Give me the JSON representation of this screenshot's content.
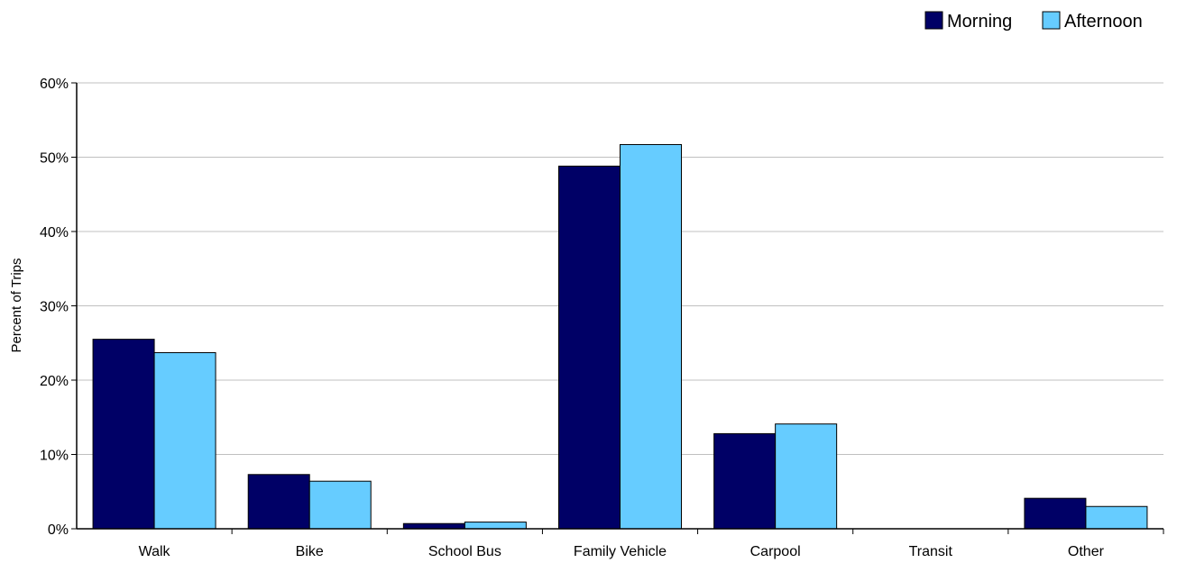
{
  "chart_data": {
    "type": "bar",
    "title": "",
    "xlabel": "",
    "ylabel": "Percent of Trips",
    "ylim": [
      0,
      60
    ],
    "y_ticks": [
      "0%",
      "10%",
      "20%",
      "30%",
      "40%",
      "50%",
      "60%"
    ],
    "y_tick_values": [
      0,
      10,
      20,
      30,
      40,
      50,
      60
    ],
    "grid": true,
    "legend_position": "top-right",
    "categories": [
      "Walk",
      "Bike",
      "School Bus",
      "Family Vehicle",
      "Carpool",
      "Transit",
      "Other"
    ],
    "series": [
      {
        "name": "Morning",
        "color": "#000066",
        "values": [
          25.5,
          7.3,
          0.7,
          48.8,
          12.8,
          0,
          4.1
        ]
      },
      {
        "name": "Afternoon",
        "color": "#66ccff",
        "values": [
          23.7,
          6.4,
          0.9,
          51.7,
          14.1,
          0,
          3.0
        ]
      }
    ]
  }
}
